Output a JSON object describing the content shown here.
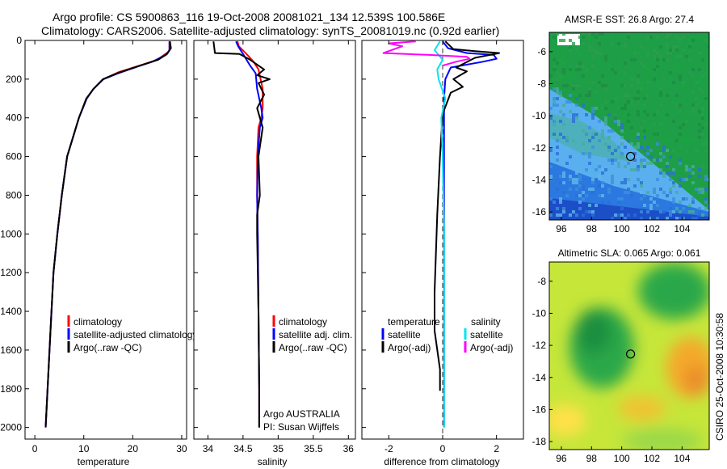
{
  "title_line1": "Argo profile: CS 5900863_116 19-Oct-2008 20081021_134 12.539S 100.586E",
  "title_line2": "Climatology: CARS2006. Satellite-adjusted climatology: synTS_20081019.nc (0.92d earlier)",
  "side_label": "CSIRO 25-Oct-2008 10:30:58",
  "colors": {
    "clim": "#ff0000",
    "sat": "#0000ff",
    "argo": "#000000",
    "cyan": "#00e5ee",
    "magenta": "#ff00ff"
  },
  "chart_data": [
    {
      "type": "line",
      "name": "temperature-profile",
      "xlabel": "temperature",
      "ylabel": "",
      "xlim": [
        -2,
        31
      ],
      "ylim": [
        2060,
        0
      ],
      "xticks": [
        "0",
        "10",
        "20",
        "30"
      ],
      "xtick_values": [
        0,
        10,
        20,
        30
      ],
      "yticks": [
        "0",
        "200",
        "400",
        "600",
        "800",
        "1000",
        "1200",
        "1400",
        "1600",
        "1800",
        "2000"
      ],
      "ytick_values": [
        0,
        200,
        400,
        600,
        800,
        1000,
        1200,
        1400,
        1600,
        1800,
        2000
      ],
      "legend": [
        "climatology",
        "satellite-adjusted climatology",
        "Argo(..raw -QC)"
      ],
      "legend_colors": [
        "clim",
        "sat",
        "argo"
      ],
      "series": [
        {
          "name": "climatology",
          "color": "clim",
          "x": [
            27.5,
            27.5,
            27.2,
            25.0,
            22.0,
            17.0,
            14.0,
            12.0,
            10.6,
            9.0,
            7.8,
            6.6,
            5.5,
            4.6,
            3.8,
            3.2,
            2.6,
            2.2
          ],
          "y": [
            5,
            50,
            60,
            100,
            125,
            165,
            200,
            250,
            300,
            400,
            500,
            600,
            800,
            1000,
            1200,
            1500,
            1800,
            2000
          ]
        },
        {
          "name": "satellite-adjusted climatology",
          "color": "sat",
          "x": [
            27.5,
            27.5,
            26.8,
            24.0,
            21.0,
            17.0,
            14.0,
            12.0,
            10.6,
            9.0,
            7.8,
            6.6,
            5.5,
            4.6,
            3.8,
            3.2,
            2.6,
            2.2
          ],
          "y": [
            5,
            50,
            75,
            110,
            135,
            170,
            200,
            250,
            300,
            400,
            500,
            600,
            800,
            1000,
            1200,
            1500,
            1800,
            2000
          ]
        },
        {
          "name": "Argo",
          "color": "argo",
          "x": [
            27.6,
            27.8,
            27.0,
            25.2,
            21.5,
            17.0,
            13.9,
            12.0,
            10.5,
            9.0,
            7.8,
            6.6,
            5.5,
            4.6,
            3.8,
            3.2,
            2.6,
            2.2
          ],
          "y": [
            5,
            40,
            70,
            100,
            130,
            168,
            200,
            250,
            300,
            400,
            500,
            600,
            800,
            1000,
            1200,
            1500,
            1800,
            2000
          ]
        }
      ]
    },
    {
      "type": "line",
      "name": "salinity-profile",
      "xlabel": "salinity",
      "xlim": [
        33.8,
        36.1
      ],
      "ylim": [
        2060,
        0
      ],
      "xticks": [
        "34",
        "34.5",
        "35",
        "35.5",
        "36"
      ],
      "xtick_values": [
        34,
        34.5,
        35,
        35.5,
        36
      ],
      "legend": [
        "climatology",
        "satellite adj. clim.",
        "Argo(..raw -QC)"
      ],
      "legend_colors": [
        "clim",
        "sat",
        "argo"
      ],
      "annotation": [
        "Argo AUSTRALIA",
        "PI: Susan Wijffels"
      ],
      "series": [
        {
          "name": "climatology",
          "color": "clim",
          "x": [
            34.42,
            34.44,
            34.55,
            34.65,
            34.72,
            34.78,
            34.78,
            34.76,
            34.72,
            34.7,
            34.7,
            34.71,
            34.72,
            34.73,
            34.73
          ],
          "y": [
            5,
            30,
            70,
            110,
            150,
            250,
            350,
            400,
            450,
            600,
            800,
            1000,
            1400,
            1800,
            2000
          ]
        },
        {
          "name": "satellite adj. clim.",
          "color": "sat",
          "x": [
            34.4,
            34.43,
            34.5,
            34.6,
            34.68,
            34.7,
            34.76,
            34.78,
            34.74,
            34.71,
            34.7,
            34.71,
            34.72,
            34.73,
            34.73
          ],
          "y": [
            5,
            30,
            70,
            130,
            170,
            250,
            350,
            400,
            450,
            600,
            800,
            1000,
            1400,
            1800,
            2000
          ]
        },
        {
          "name": "Argo",
          "color": "argo",
          "x": [
            34.08,
            34.1,
            34.45,
            34.6,
            34.8,
            34.7,
            34.88,
            34.72,
            34.8,
            34.7,
            34.78,
            34.72,
            34.74,
            34.7,
            34.7,
            34.72,
            34.73,
            34.73
          ],
          "y": [
            5,
            65,
            70,
            100,
            150,
            180,
            200,
            220,
            280,
            350,
            450,
            600,
            800,
            900,
            1000,
            1400,
            1800,
            2000
          ]
        }
      ]
    },
    {
      "type": "line",
      "name": "difference-profile",
      "xlabel": "difference from climatology",
      "xlim": [
        -3,
        3
      ],
      "ylim": [
        2060,
        0
      ],
      "xticks": [
        "-2",
        "0",
        "2"
      ],
      "xtick_values": [
        -2,
        0,
        2
      ],
      "legend_titles": [
        "temperature",
        "salinity"
      ],
      "legend": [
        "satellite",
        "Argo(-adj)",
        "satellite",
        "Argo(-adj)"
      ],
      "legend_colors": [
        "sat",
        "argo",
        "cyan",
        "magenta"
      ],
      "series": [
        {
          "name": "temperature satellite",
          "color": "sat",
          "x": [
            0.0,
            0.2,
            0.9,
            1.9,
            2.0,
            1.5,
            0.3,
            0.1,
            0.05,
            0.05,
            0.05,
            0.05
          ],
          "y": [
            5,
            40,
            65,
            75,
            95,
            110,
            140,
            200,
            300,
            800,
            1500,
            2000
          ]
        },
        {
          "name": "temperature Argo(-adj)",
          "color": "argo",
          "x": [
            0.1,
            0.4,
            1.2,
            2.1,
            1.2,
            0.5,
            0.9,
            0.4,
            0.75,
            0.3,
            0.0,
            -0.1,
            -0.2,
            -0.3,
            -0.3,
            -0.1,
            -0.1
          ],
          "y": [
            5,
            45,
            55,
            65,
            90,
            140,
            160,
            200,
            240,
            270,
            380,
            600,
            900,
            1300,
            1500,
            1700,
            1810
          ]
        },
        {
          "name": "salinity satellite",
          "color": "cyan",
          "x": [
            -0.1,
            -0.3,
            0.0,
            -0.2,
            -0.15,
            0.1,
            -0.05,
            0.0,
            0.05,
            0.05,
            0.05
          ],
          "y": [
            5,
            50,
            100,
            150,
            200,
            300,
            400,
            600,
            1000,
            1500,
            2000
          ]
        },
        {
          "name": "salinity Argo(-adj)",
          "color": "magenta",
          "x": [
            -1.0,
            -2.0,
            -1.5,
            -2.2,
            -0.5,
            0.9,
            1.0,
            0.5,
            0.0
          ],
          "y": [
            5,
            15,
            30,
            65,
            75,
            85,
            95,
            110,
            130
          ]
        }
      ]
    },
    {
      "type": "heatmap",
      "name": "sst-map",
      "title": "AMSR-E SST: 26.8 Argo: 27.4",
      "xlim": [
        95.2,
        105.8
      ],
      "ylim": [
        -16.5,
        -4.8
      ],
      "xticks": [
        "96",
        "98",
        "100",
        "102",
        "104"
      ],
      "xtick_values": [
        96,
        98,
        100,
        102,
        104
      ],
      "yticks": [
        "-6",
        "-8",
        "-10",
        "-12",
        "-14",
        "-16"
      ],
      "ytick_values": [
        -6,
        -8,
        -10,
        -12,
        -14,
        -16
      ],
      "float_position": {
        "lon": 100.586,
        "lat": -12.539
      }
    },
    {
      "type": "heatmap",
      "name": "sla-map",
      "title": "Altimetric SLA: 0.065 Argo: 0.061",
      "xlim": [
        95.2,
        105.8
      ],
      "ylim": [
        -18.5,
        -6.8
      ],
      "xticks": [
        "96",
        "98",
        "100",
        "102",
        "104"
      ],
      "xtick_values": [
        96,
        98,
        100,
        102,
        104
      ],
      "yticks": [
        "-8",
        "-10",
        "-12",
        "-14",
        "-16",
        "-18"
      ],
      "ytick_values": [
        -8,
        -10,
        -12,
        -14,
        -16,
        -18
      ],
      "float_position": {
        "lon": 100.586,
        "lat": -12.539
      }
    }
  ]
}
